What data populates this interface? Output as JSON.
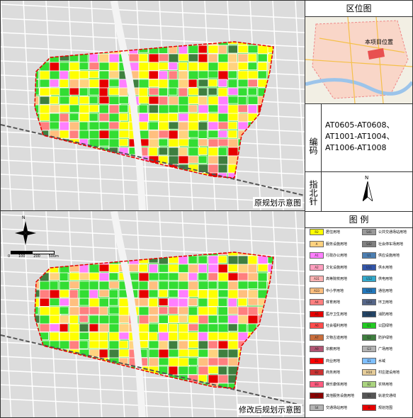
{
  "panels": {
    "original_caption": "原规划示意图",
    "revised_caption": "修改后规划示意图"
  },
  "location": {
    "title": "区位图",
    "marker": "本项目位置"
  },
  "code": {
    "label": "编码",
    "lines": [
      "AT0605-AT0608、",
      "AT1001-AT1004、",
      "AT1006-AT1008"
    ]
  },
  "compass": {
    "label": "指北针",
    "north": "N"
  },
  "scale": {
    "north": "N",
    "ticks": [
      "0",
      "100",
      "200",
      "500m"
    ]
  },
  "legend": {
    "title": "图 例",
    "items": [
      {
        "code": "R2",
        "label": "居住用地",
        "color": "#ffff00"
      },
      {
        "code": "A",
        "label": "服务设施用地",
        "color": "#ffd27f"
      },
      {
        "code": "A1",
        "label": "行政办公用地",
        "color": "#ff7fff"
      },
      {
        "code": "A2",
        "label": "文化设施用地",
        "color": "#ff9fbf"
      },
      {
        "code": "A31",
        "label": "高等院校用地",
        "color": "#ffb2b2"
      },
      {
        "code": "A33",
        "label": "中小学用地",
        "color": "#ffbf7f"
      },
      {
        "code": "A4",
        "label": "体育用地",
        "color": "#ff7f7f"
      },
      {
        "code": "A5",
        "label": "医疗卫生用地",
        "color": "#e60000"
      },
      {
        "code": "A6",
        "label": "社会福利用地",
        "color": "#ff4c4c"
      },
      {
        "code": "A7",
        "label": "文物古迹用地",
        "color": "#c96e3c"
      },
      {
        "code": "A9",
        "label": "宗教用地",
        "color": "#b25573"
      },
      {
        "code": "B1",
        "label": "商业用地",
        "color": "#ff0000"
      },
      {
        "code": "B2",
        "label": "商务用地",
        "color": "#cc3333"
      },
      {
        "code": "B3",
        "label": "娱乐康体用地",
        "color": "#ff5b7f"
      },
      {
        "code": "B9",
        "label": "其他服务设施用地",
        "color": "#8c0000"
      },
      {
        "code": "S4",
        "label": "交通场站用地",
        "color": "#b3b3b3"
      },
      {
        "code": "S41",
        "label": "公共交通场站用地",
        "color": "#999999"
      },
      {
        "code": "S42",
        "label": "社会停车场用地",
        "color": "#808080"
      },
      {
        "code": "U1",
        "label": "供应设施用地",
        "color": "#4c7fb2"
      },
      {
        "code": "U11",
        "label": "供水用地",
        "color": "#3355aa"
      },
      {
        "code": "U12",
        "label": "供电用地",
        "color": "#33aacc"
      },
      {
        "code": "U15",
        "label": "通信用地",
        "color": "#2277bb"
      },
      {
        "code": "U22",
        "label": "环卫用地",
        "color": "#556688"
      },
      {
        "code": "U31",
        "label": "消防用地",
        "color": "#224466"
      },
      {
        "code": "G1",
        "label": "公园绿地",
        "color": "#22cc22"
      },
      {
        "code": "G2",
        "label": "防护绿地",
        "color": "#3f7f3f"
      },
      {
        "code": "G3",
        "label": "广场用地",
        "color": "#b2b2b2"
      },
      {
        "code": "E1",
        "label": "水域",
        "color": "#7fbfff"
      },
      {
        "code": "H14",
        "label": "村庄建设用地",
        "color": "#e5cc99"
      },
      {
        "code": "E2",
        "label": "农林用地",
        "color": "#aad47f"
      },
      {
        "code": "S1",
        "label": "轨道交通线",
        "color": "#555555"
      },
      {
        "code": "H",
        "label": "规划范围",
        "color": "#e60000"
      }
    ]
  }
}
